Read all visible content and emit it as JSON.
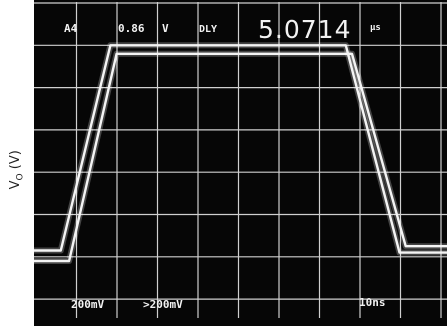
{
  "chart_data": {
    "type": "line",
    "title": "",
    "xlabel": "",
    "ylabel": "V",
    "ylabel_sub": "O",
    "ylabel_unit": "(V)",
    "grid": true,
    "grid_divisions": {
      "x": 10,
      "y": 7
    },
    "x_units": "ns",
    "y_units": "V",
    "xlim": [
      0,
      100
    ],
    "ylim": [
      -0.7,
      0.7
    ],
    "series": [
      {
        "x": [
          0,
          8.5,
          20,
          77,
          90,
          100
        ],
        "y": [
          -0.52,
          -0.52,
          0.46,
          0.46,
          -0.45,
          -0.45
        ]
      },
      {
        "x": [
          0,
          6.5,
          18.5,
          75.5,
          88.5,
          100
        ],
        "y": [
          -0.47,
          -0.47,
          0.5,
          0.5,
          -0.48,
          -0.48
        ]
      }
    ]
  },
  "scope": {
    "top": {
      "channel": "A4",
      "trigger_level": "0.86",
      "trigger_unit": "V",
      "mode": "DLY",
      "delay_value": "5.0714",
      "delay_unit": "μs"
    },
    "bottom": {
      "ch1_scale": "200mV",
      "ch2_scale": ">200mV",
      "time_scale": "10ns"
    }
  }
}
